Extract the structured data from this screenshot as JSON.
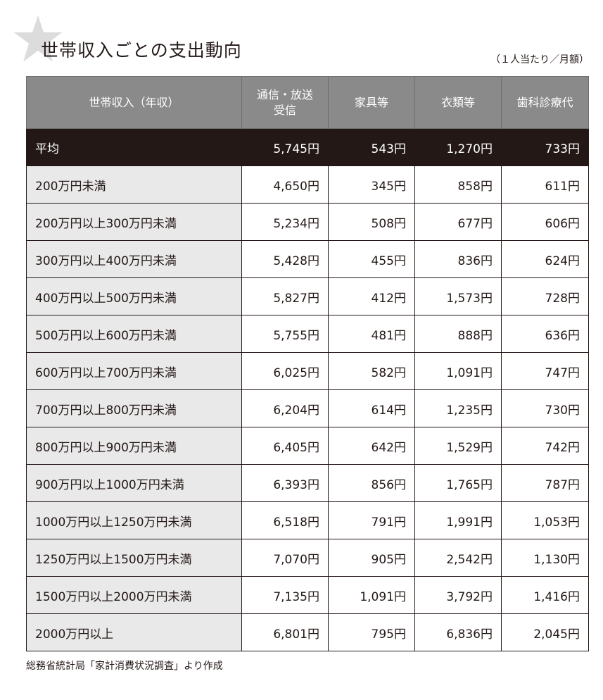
{
  "title": "世帯収入ごとの支出動向",
  "unit_note": "（１人当たり／月額）",
  "columns": [
    "世帯収入（年収）",
    "通信・放送\n受信",
    "家具等",
    "衣類等",
    "歯科診療代"
  ],
  "header": {
    "c1": "世帯収入（年収）",
    "c2_line1": "通信・放送",
    "c2_line2": "受信",
    "c3": "家具等",
    "c4": "衣類等",
    "c5": "歯科診療代"
  },
  "rows": [
    {
      "label": "平均",
      "v": [
        "5,745円",
        "543円",
        "1,270円",
        "733円"
      ]
    },
    {
      "label": "200万円未満",
      "v": [
        "4,650円",
        "345円",
        "858円",
        "611円"
      ]
    },
    {
      "label": "200万円以上300万円未満",
      "v": [
        "5,234円",
        "508円",
        "677円",
        "606円"
      ]
    },
    {
      "label": "300万円以上400万円未満",
      "v": [
        "5,428円",
        "455円",
        "836円",
        "624円"
      ]
    },
    {
      "label": "400万円以上500万円未満",
      "v": [
        "5,827円",
        "412円",
        "1,573円",
        "728円"
      ]
    },
    {
      "label": "500万円以上600万円未満",
      "v": [
        "5,755円",
        "481円",
        "888円",
        "636円"
      ]
    },
    {
      "label": "600万円以上700万円未満",
      "v": [
        "6,025円",
        "582円",
        "1,091円",
        "747円"
      ]
    },
    {
      "label": "700万円以上800万円未満",
      "v": [
        "6,204円",
        "614円",
        "1,235円",
        "730円"
      ]
    },
    {
      "label": "800万円以上900万円未満",
      "v": [
        "6,405円",
        "642円",
        "1,529円",
        "742円"
      ]
    },
    {
      "label": "900万円以上1000万円未満",
      "v": [
        "6,393円",
        "856円",
        "1,765円",
        "787円"
      ]
    },
    {
      "label": "1000万円以上1250万円未満",
      "v": [
        "6,518円",
        "791円",
        "1,991円",
        "1,053円"
      ]
    },
    {
      "label": "1250万円以上1500万円未満",
      "v": [
        "7,070円",
        "905円",
        "2,542円",
        "1,130円"
      ]
    },
    {
      "label": "1500万円以上2000万円未満",
      "v": [
        "7,135円",
        "1,091円",
        "3,792円",
        "1,416円"
      ]
    },
    {
      "label": "2000万円以上",
      "v": [
        "6,801円",
        "795円",
        "6,836円",
        "2,045円"
      ]
    }
  ],
  "source": "総務省統計局「家計消費状況調査」より作成",
  "colors": {
    "header_bg": "#8a8a8a",
    "avg_bg": "#231815",
    "label_bg": "#e9e9ea",
    "star": "#dcdcdd"
  },
  "icons": {
    "decoration": "star-icon"
  }
}
